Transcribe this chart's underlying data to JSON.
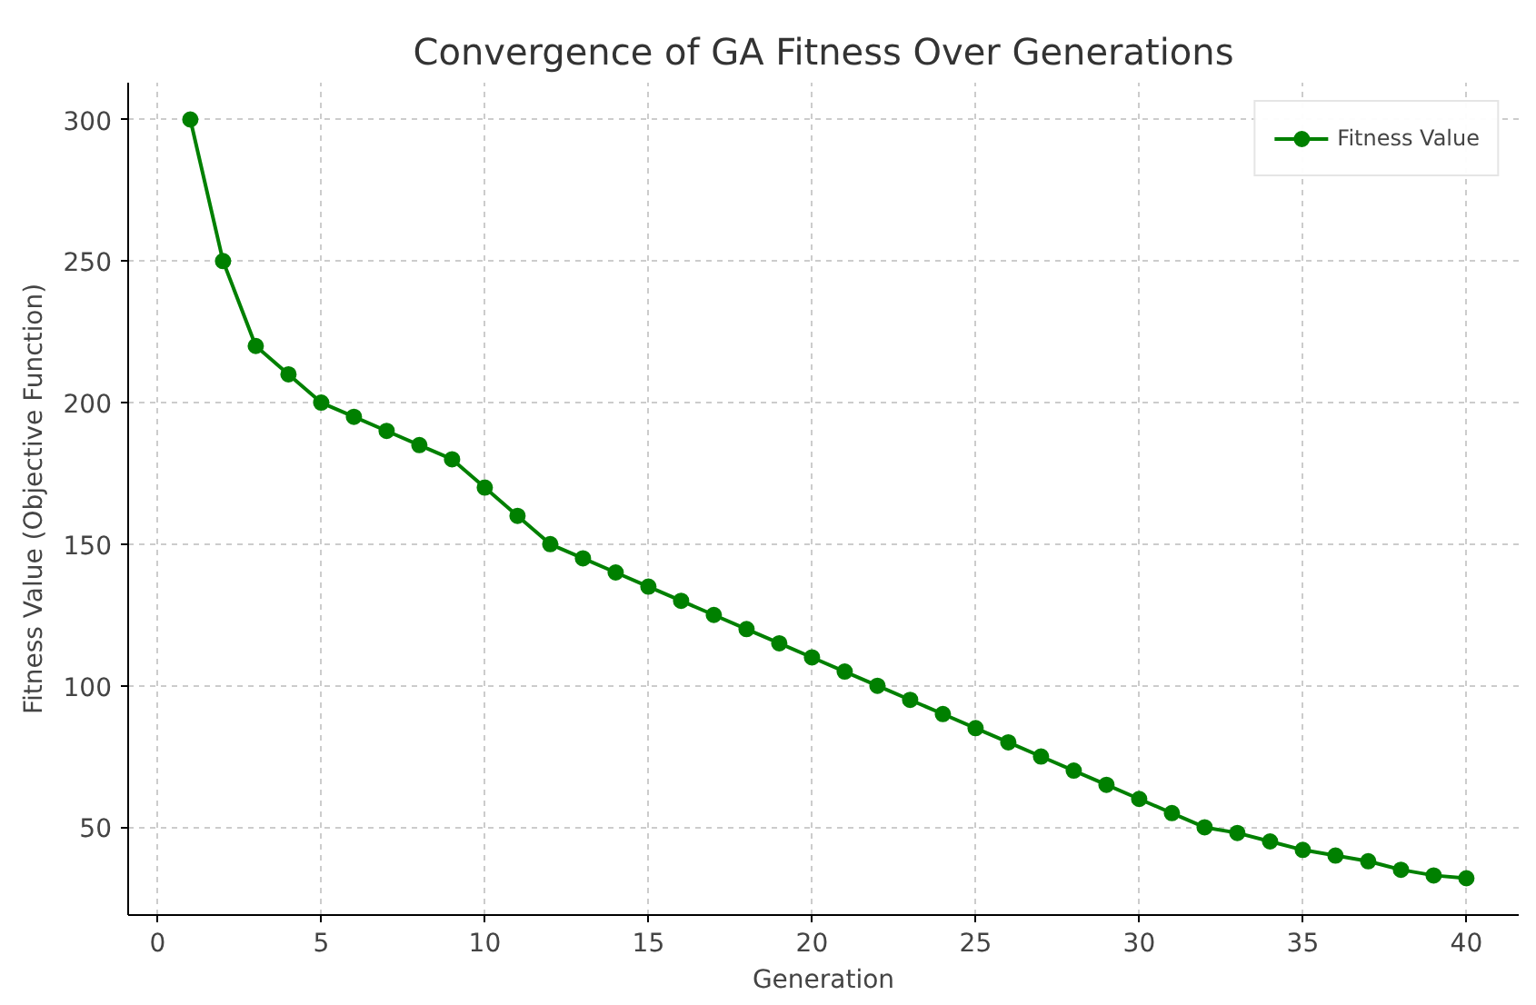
{
  "chart_data": {
    "type": "line",
    "title": "Convergence of GA Fitness Over Generations",
    "xlabel": "Generation",
    "ylabel": "Fitness Value (Objective Function)",
    "x": [
      1,
      2,
      3,
      4,
      5,
      6,
      7,
      8,
      9,
      10,
      11,
      12,
      13,
      14,
      15,
      16,
      17,
      18,
      19,
      20,
      21,
      22,
      23,
      24,
      25,
      26,
      27,
      28,
      29,
      30,
      31,
      32,
      33,
      34,
      35,
      36,
      37,
      38,
      39,
      40
    ],
    "series": [
      {
        "name": "Fitness Value",
        "color": "#008000",
        "values": [
          300,
          250,
          220,
          210,
          200,
          195,
          190,
          185,
          180,
          170,
          160,
          150,
          145,
          140,
          135,
          130,
          125,
          120,
          115,
          110,
          105,
          100,
          95,
          90,
          85,
          80,
          75,
          70,
          65,
          60,
          55,
          50,
          48,
          45,
          42,
          40,
          38,
          35,
          33,
          32
        ]
      }
    ],
    "xlim": [
      -0.9,
      41.6
    ],
    "ylim": [
      19,
      313
    ],
    "xticks": [
      0,
      5,
      10,
      15,
      20,
      25,
      30,
      35,
      40
    ],
    "yticks": [
      50,
      100,
      150,
      200,
      250,
      300
    ],
    "grid": true,
    "legend": "top right",
    "marker": "circle",
    "line_style": "solid"
  }
}
